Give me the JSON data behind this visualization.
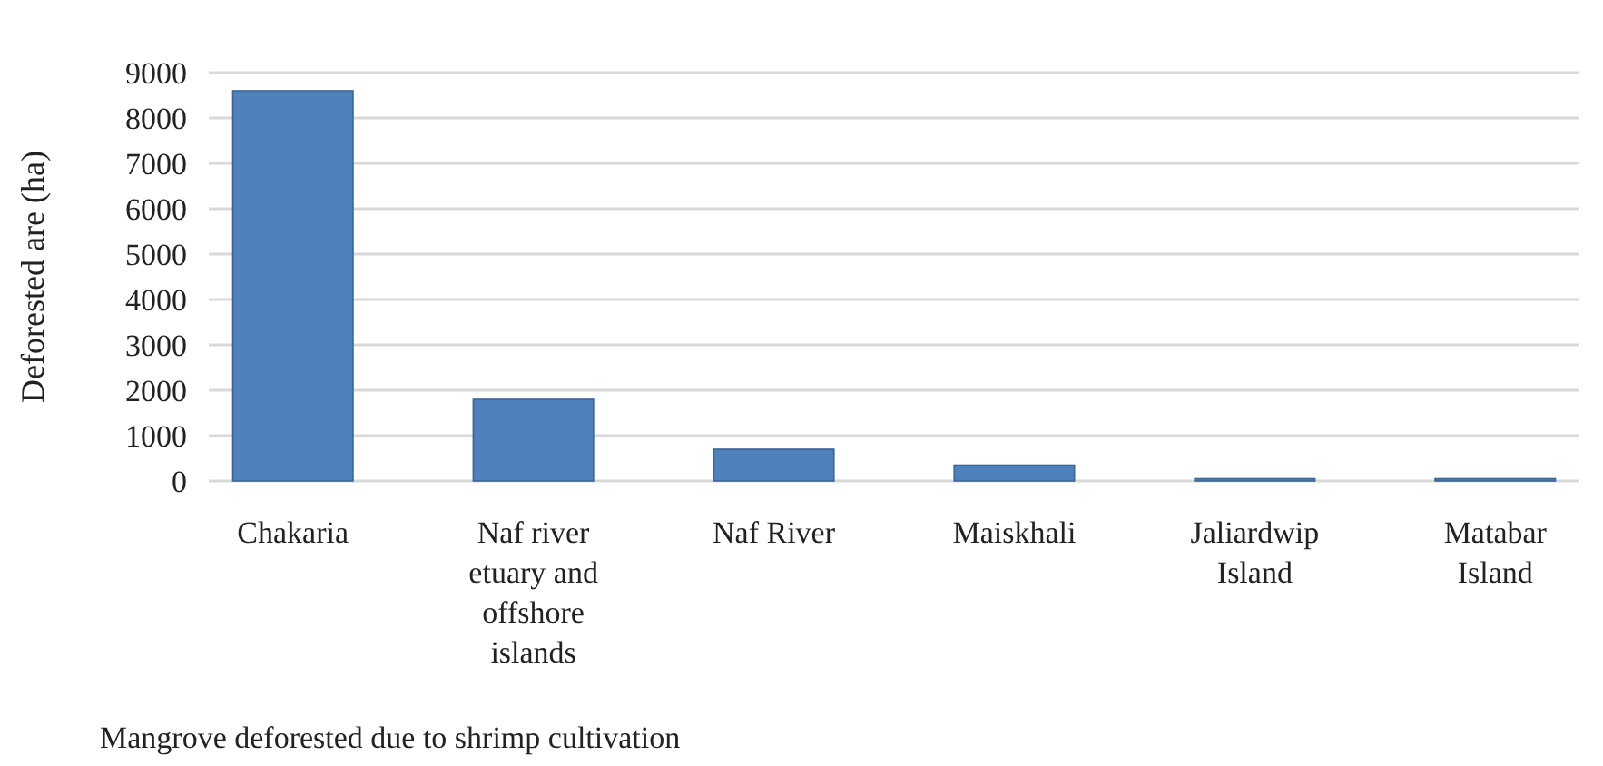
{
  "chart_data": {
    "type": "bar",
    "xlabel": "Mangrove deforested due to shrimp cultivation",
    "ylabel": "Deforested are (ha)",
    "categories": [
      "Chakaria",
      "Naf river etuary and offshore islands",
      "Naf River",
      "Maiskhali",
      "Jaliardwip Island",
      "Matabar Island"
    ],
    "values": [
      8600,
      1800,
      700,
      350,
      50,
      50
    ],
    "color": "#4f81bd",
    "ylim": [
      0,
      9000
    ],
    "yticks": [
      0,
      1000,
      2000,
      3000,
      4000,
      5000,
      6000,
      7000,
      8000,
      9000
    ],
    "grid": true
  }
}
